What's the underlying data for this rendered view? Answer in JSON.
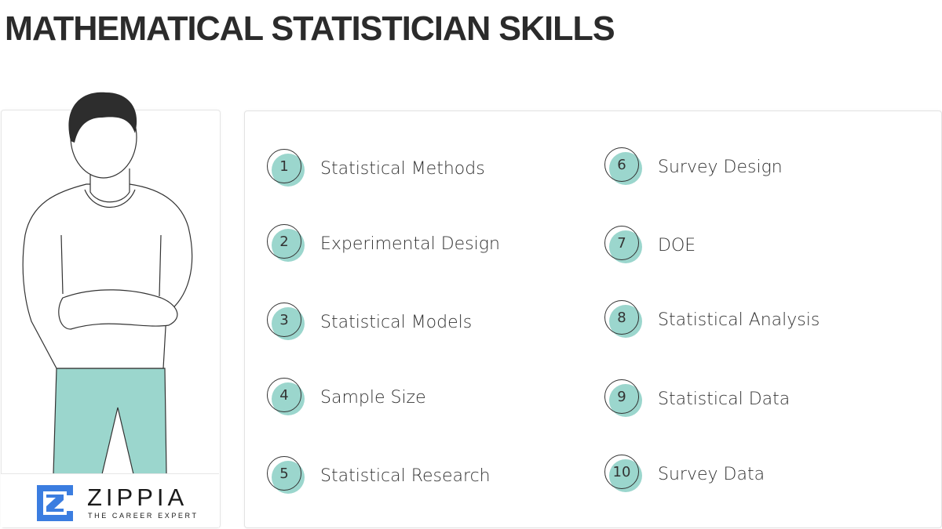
{
  "title": "MATHEMATICAL STATISTICIAN SKILLS",
  "brand": {
    "name": "ZIPPIA",
    "tagline": "THE CAREER EXPERT",
    "logo_color": "#3b7de0"
  },
  "accent_color": "#9bd6cd",
  "skills": [
    {
      "number": "1",
      "label": "Statistical Methods"
    },
    {
      "number": "2",
      "label": "Experimental Design"
    },
    {
      "number": "3",
      "label": "Statistical Models"
    },
    {
      "number": "4",
      "label": "Sample Size"
    },
    {
      "number": "5",
      "label": "Statistical Research"
    },
    {
      "number": "6",
      "label": "Survey Design"
    },
    {
      "number": "7",
      "label": "DOE"
    },
    {
      "number": "8",
      "label": "Statistical Analysis"
    },
    {
      "number": "9",
      "label": "Statistical Data"
    },
    {
      "number": "10",
      "label": "Survey Data"
    }
  ]
}
